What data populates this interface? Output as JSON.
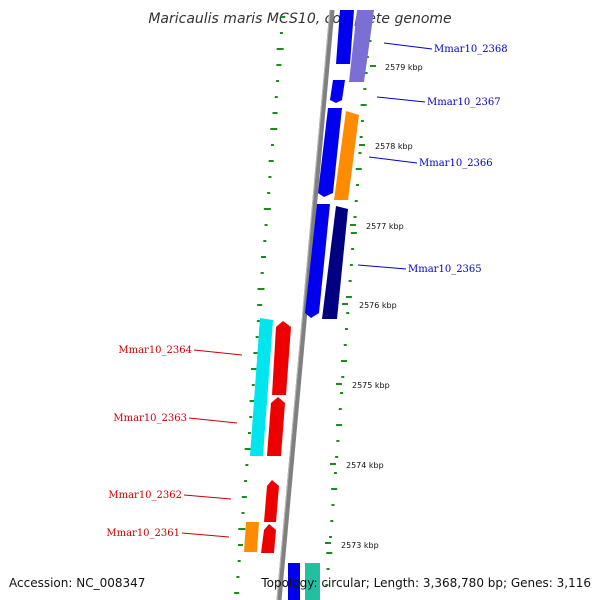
{
  "title": "Maricaulis maris MCS10, complete genome",
  "accession": "Accession: NC_008347",
  "topology": "Topology: circular; Length: 3,368,780 bp; Genes: 3,116",
  "ticks": [
    "2579 kbp",
    "2578 kbp",
    "2577 kbp",
    "2576 kbp",
    "2575 kbp",
    "2574 kbp",
    "2573 kbp"
  ],
  "genes_right": [
    "Mmar10_2368",
    "Mmar10_2367",
    "Mmar10_2366",
    "Mmar10_2365"
  ],
  "genes_left": [
    "Mmar10_2364",
    "Mmar10_2363",
    "Mmar10_2362",
    "Mmar10_2361"
  ],
  "colors": {
    "label_right": "#0000cc",
    "label_left": "#cc0000",
    "backbone": "#808080",
    "gc_marks": "#1f8a1f",
    "blue": "#0000ee",
    "navy": "#000080",
    "lavender": "#7b6fd6",
    "orange": "#ff8c00",
    "red": "#ee0000",
    "cyan": "#00e5ee",
    "teal": "#20c0a0"
  }
}
